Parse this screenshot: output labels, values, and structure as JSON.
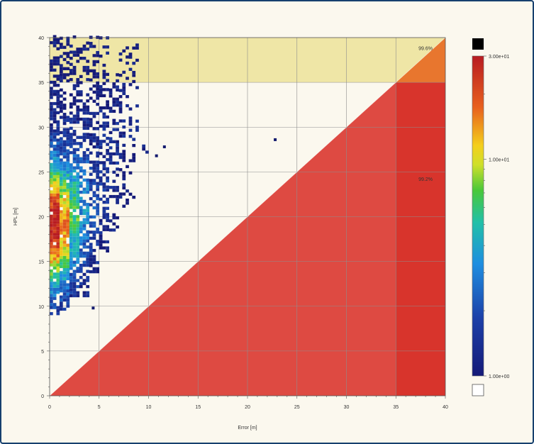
{
  "chart_data": {
    "type": "heatmap",
    "xlabel": "Error [m]",
    "ylabel": "HPL [m]",
    "xlim": [
      0,
      40
    ],
    "ylim": [
      0,
      40
    ],
    "x_ticks": [
      "0",
      "5",
      "10",
      "15",
      "20",
      "25",
      "30",
      "35",
      "40"
    ],
    "y_ticks": [
      "0",
      "5",
      "10",
      "15",
      "20",
      "25",
      "30",
      "35",
      "40"
    ],
    "alert_limit": 35,
    "grid": true,
    "regions": [
      {
        "id": "unavailable",
        "color": "#efe6a6",
        "label": "99.6%"
      },
      {
        "id": "hmi",
        "color": "#de4a42"
      },
      {
        "id": "hmi-and-unavailable",
        "color": "#e8762e"
      },
      {
        "id": "misleading",
        "color": "#d8342c",
        "label": "99.2%"
      }
    ],
    "colorbar": {
      "scale": "log",
      "max_label": "3.00e+01",
      "mid_label": "1.00e+01",
      "min_label": "1.00e+00",
      "overflow_color": "#000000",
      "underflow_color": "#ffffff"
    },
    "density_columns": [
      {
        "x": 0.5,
        "y_min": 9,
        "y_max": 40,
        "peak_y": 19,
        "peak_level": 1.0
      },
      {
        "x": 1.5,
        "y_min": 9.5,
        "y_max": 40,
        "peak_y": 19,
        "peak_level": 0.8
      },
      {
        "x": 2.5,
        "y_min": 11,
        "y_max": 40,
        "peak_y": 20,
        "peak_level": 0.55
      },
      {
        "x": 3.5,
        "y_min": 11,
        "y_max": 40,
        "peak_y": 21,
        "peak_level": 0.35
      },
      {
        "x": 4.5,
        "y_min": 13,
        "y_max": 40,
        "peak_y": 21,
        "peak_level": 0.2
      },
      {
        "x": 5.5,
        "y_min": 16,
        "y_max": 40,
        "peak_y": 24,
        "peak_level": 0.12
      },
      {
        "x": 6.5,
        "y_min": 18,
        "y_max": 36,
        "peak_y": 26,
        "peak_level": 0.08
      },
      {
        "x": 7.5,
        "y_min": 21,
        "y_max": 40,
        "peak_y": 28,
        "peak_level": 0.05
      },
      {
        "x": 8.5,
        "y_min": 22,
        "y_max": 40,
        "peak_y": 30,
        "peak_level": 0.03
      },
      {
        "x": 9.5,
        "y_min": 25,
        "y_max": 28,
        "peak_y": 26,
        "peak_level": 0.02
      }
    ],
    "outliers": [
      {
        "x": 10.8,
        "y": 26.8
      },
      {
        "x": 11.6,
        "y": 27.8
      },
      {
        "x": 22.8,
        "y": 28.6
      },
      {
        "x": 4.4,
        "y": 9.8
      }
    ]
  }
}
